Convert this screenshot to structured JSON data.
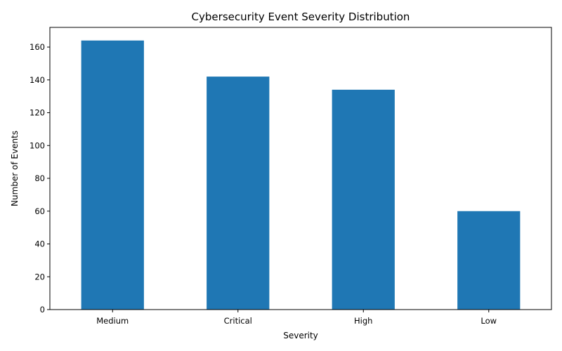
{
  "chart_data": {
    "type": "bar",
    "title": "Cybersecurity Event Severity Distribution",
    "xlabel": "Severity",
    "ylabel": "Number of Events",
    "categories": [
      "Medium",
      "Critical",
      "High",
      "Low"
    ],
    "values": [
      164,
      142,
      134,
      60
    ],
    "ylim": [
      0,
      172
    ],
    "yticks": [
      0,
      20,
      40,
      60,
      80,
      100,
      120,
      140,
      160
    ],
    "grid": false,
    "legend": "none",
    "bar_color": "#1f77b4"
  }
}
